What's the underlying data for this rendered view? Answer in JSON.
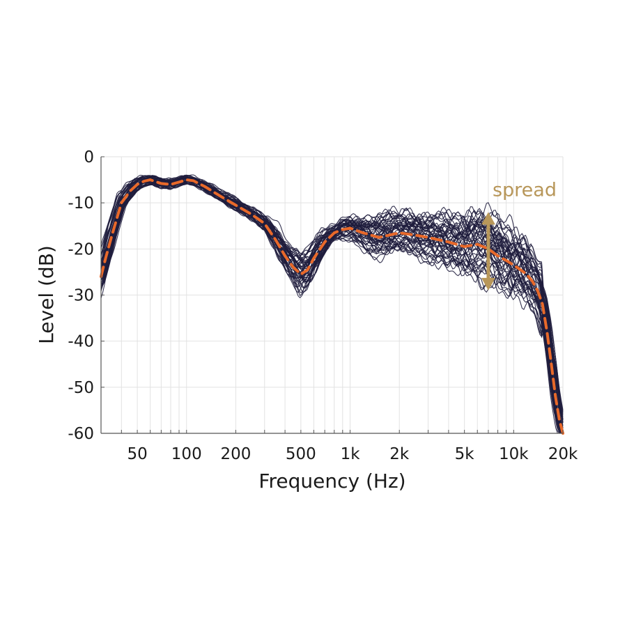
{
  "chart_data": {
    "type": "line",
    "xlabel": "Frequency (Hz)",
    "ylabel": "Level (dB)",
    "xscale": "log",
    "xlim": [
      30,
      20000
    ],
    "ylim": [
      -60,
      0
    ],
    "grid": true,
    "x_ticks": [
      {
        "value": 50,
        "label": "50"
      },
      {
        "value": 100,
        "label": "100"
      },
      {
        "value": 200,
        "label": "200"
      },
      {
        "value": 500,
        "label": "500"
      },
      {
        "value": 1000,
        "label": "1k"
      },
      {
        "value": 2000,
        "label": "2k"
      },
      {
        "value": 5000,
        "label": "5k"
      },
      {
        "value": 10000,
        "label": "10k"
      },
      {
        "value": 20000,
        "label": "20k"
      }
    ],
    "y_ticks": [
      {
        "value": 0,
        "label": "0"
      },
      {
        "value": -10,
        "label": "-10"
      },
      {
        "value": -20,
        "label": "-20"
      },
      {
        "value": -30,
        "label": "-30"
      },
      {
        "value": -40,
        "label": "-40"
      },
      {
        "value": -50,
        "label": "-50"
      },
      {
        "value": -60,
        "label": "-60"
      }
    ],
    "individual_curves": {
      "color": "#1f1d3d",
      "count": 50,
      "spread_envelope": {
        "x": [
          30,
          40,
          60,
          100,
          200,
          300,
          500,
          800,
          1500,
          3000,
          6000,
          10000,
          14000
        ],
        "min": [
          -30,
          -12,
          -7,
          -6,
          -12,
          -18,
          -31,
          -18,
          -24,
          -25,
          -29,
          -34,
          -32
        ],
        "max": [
          -20,
          -8,
          -4,
          -4,
          -9,
          -14,
          -20,
          -14,
          -13,
          -13,
          -11,
          -14,
          -16
        ]
      }
    },
    "mean_curve": {
      "color": "#e8692a",
      "style": "dashed",
      "x": [
        30,
        32,
        35,
        40,
        45,
        50,
        55,
        60,
        70,
        80,
        90,
        100,
        110,
        130,
        160,
        200,
        250,
        300,
        350,
        400,
        450,
        500,
        550,
        600,
        700,
        800,
        900,
        1000,
        1200,
        1500,
        2000,
        2500,
        3000,
        4000,
        5000,
        6000,
        7000,
        8000,
        9000,
        10000,
        11000,
        12000,
        13000,
        14000,
        15000,
        16000,
        17000,
        18000,
        19000,
        20000
      ],
      "y": [
        -26,
        -22,
        -17,
        -10,
        -7.5,
        -6,
        -5.3,
        -5,
        -5.8,
        -6,
        -5.5,
        -5,
        -5.2,
        -6.5,
        -8.5,
        -10.5,
        -12.5,
        -14.5,
        -18,
        -21.5,
        -24,
        -25.5,
        -24.5,
        -22,
        -18.5,
        -16.5,
        -15.8,
        -15.5,
        -16.5,
        -17.5,
        -16.5,
        -17,
        -17.5,
        -18.5,
        -19.5,
        -19,
        -20,
        -21.5,
        -22.5,
        -23.5,
        -24.5,
        -25.5,
        -27,
        -29,
        -32,
        -38,
        -45,
        -52,
        -57,
        -60
      ]
    },
    "annotations": [
      {
        "text": "spread",
        "x": 7000,
        "y_from": -12,
        "y_to": -29,
        "color": "#b8975a"
      }
    ]
  }
}
